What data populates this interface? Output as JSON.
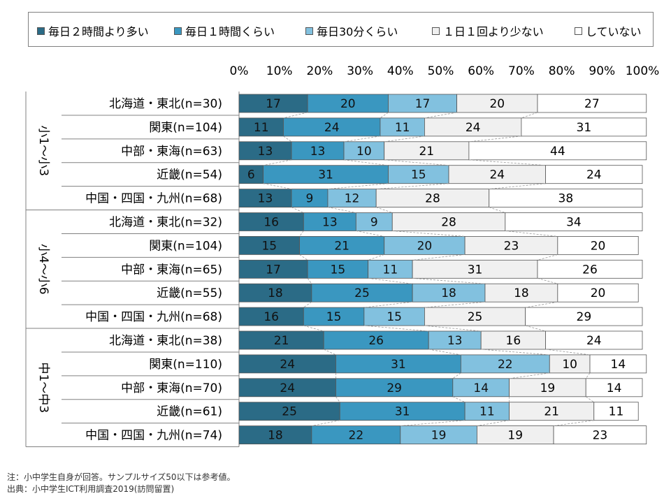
{
  "chart_data": {
    "type": "bar",
    "stacked": "percent",
    "orientation": "horizontal",
    "x_ticks": [
      "0%",
      "10%",
      "20%",
      "30%",
      "40%",
      "50%",
      "60%",
      "70%",
      "80%",
      "90%",
      "100%"
    ],
    "xlim": [
      0,
      100
    ],
    "legend_position": "top",
    "series": [
      {
        "name": "毎日２時間より多い",
        "color": "#2b6b86"
      },
      {
        "name": "毎日１時間くらい",
        "color": "#3a97c0"
      },
      {
        "name": "毎日30分くらい",
        "color": "#82c1df"
      },
      {
        "name": "１日１回より少ない",
        "color": "#f0f0f0"
      },
      {
        "name": "していない",
        "color": "#ffffff"
      }
    ],
    "groups": [
      {
        "label": "小1～小3",
        "rows": [
          {
            "label": "北海道・東北(n=30)",
            "values": [
              17,
              20,
              17,
              20,
              27
            ]
          },
          {
            "label": "関東(n=104)",
            "values": [
              11,
              24,
              11,
              24,
              31
            ]
          },
          {
            "label": "中部・東海(n=63)",
            "values": [
              13,
              13,
              10,
              21,
              44
            ]
          },
          {
            "label": "近畿(n=54)",
            "values": [
              6,
              31,
              15,
              24,
              24
            ]
          },
          {
            "label": "中国・四国・九州(n=68)",
            "values": [
              13,
              9,
              12,
              28,
              38
            ]
          }
        ]
      },
      {
        "label": "小4～小6",
        "rows": [
          {
            "label": "北海道・東北(n=32)",
            "values": [
              16,
              13,
              9,
              28,
              34
            ]
          },
          {
            "label": "関東(n=104)",
            "values": [
              15,
              21,
              20,
              23,
              20
            ]
          },
          {
            "label": "中部・東海(n=65)",
            "values": [
              17,
              15,
              11,
              31,
              26
            ]
          },
          {
            "label": "近畿(n=55)",
            "values": [
              18,
              25,
              18,
              18,
              20
            ]
          },
          {
            "label": "中国・四国・九州(n=68)",
            "values": [
              16,
              15,
              15,
              25,
              29
            ]
          }
        ]
      },
      {
        "label": "中1～中3",
        "rows": [
          {
            "label": "北海道・東北(n=38)",
            "values": [
              21,
              26,
              13,
              16,
              24
            ]
          },
          {
            "label": "関東(n=110)",
            "values": [
              24,
              31,
              22,
              10,
              14
            ]
          },
          {
            "label": "中部・東海(n=70)",
            "values": [
              24,
              29,
              14,
              19,
              14
            ]
          },
          {
            "label": "近畿(n=61)",
            "values": [
              25,
              31,
              11,
              21,
              11
            ]
          },
          {
            "label": "中国・四国・九州(n=74)",
            "values": [
              18,
              22,
              19,
              19,
              23
            ]
          }
        ]
      }
    ]
  },
  "notes": {
    "line1": "注：小中学生自身が回答。サンプルサイズ50以下は参考値。",
    "line2": "出典：小中学生ICT利用調査2019(訪問留置)"
  }
}
